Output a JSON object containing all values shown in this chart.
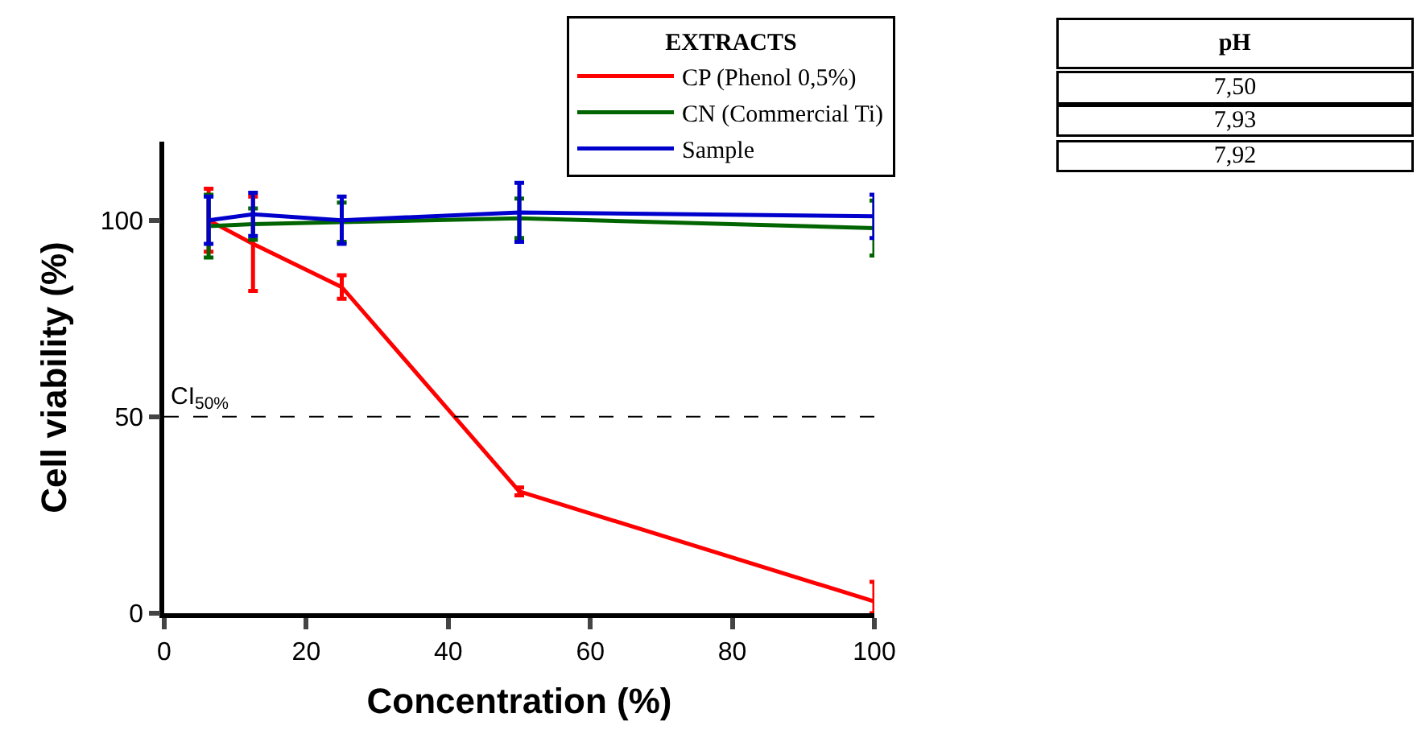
{
  "chart_data": {
    "type": "line",
    "xlabel": "Concentration (%)",
    "ylabel": "Cell viability (%)",
    "legend_title": "EXTRACTS",
    "x": [
      6.25,
      12.5,
      25,
      50,
      100
    ],
    "series": [
      {
        "name": "CP (Phenol 0,5%)",
        "color": "#ff0000",
        "values": [
          100,
          94,
          83,
          31,
          3
        ],
        "errors": [
          8,
          12,
          3,
          1,
          [
            0,
            8
          ]
        ]
      },
      {
        "name": "CN (Commercial Ti)",
        "color": "#006400",
        "values": [
          98.5,
          99,
          99.5,
          100.5,
          98
        ],
        "errors": [
          8,
          4,
          5,
          5,
          7
        ]
      },
      {
        "name": "Sample",
        "color": "#0000cc",
        "values": [
          100,
          101.5,
          100,
          102,
          101
        ],
        "errors": [
          6,
          5.5,
          6,
          7.5,
          5.5
        ]
      }
    ],
    "xlim": [
      0,
      100
    ],
    "xticks": [
      0,
      20,
      40,
      60,
      80,
      100
    ],
    "ylim": [
      0,
      120
    ],
    "yticks": [
      0,
      50,
      100
    ],
    "ref_lines": [
      {
        "axis": "y",
        "value": 50,
        "label": "CI$_{50%}$",
        "color": "#000000",
        "line_style": "dashed"
      }
    ],
    "annotations": [
      "pH",
      "7,50",
      "7,93",
      "7,92"
    ],
    "legend": "top right",
    "marker": "none",
    "line_style": "solid"
  }
}
